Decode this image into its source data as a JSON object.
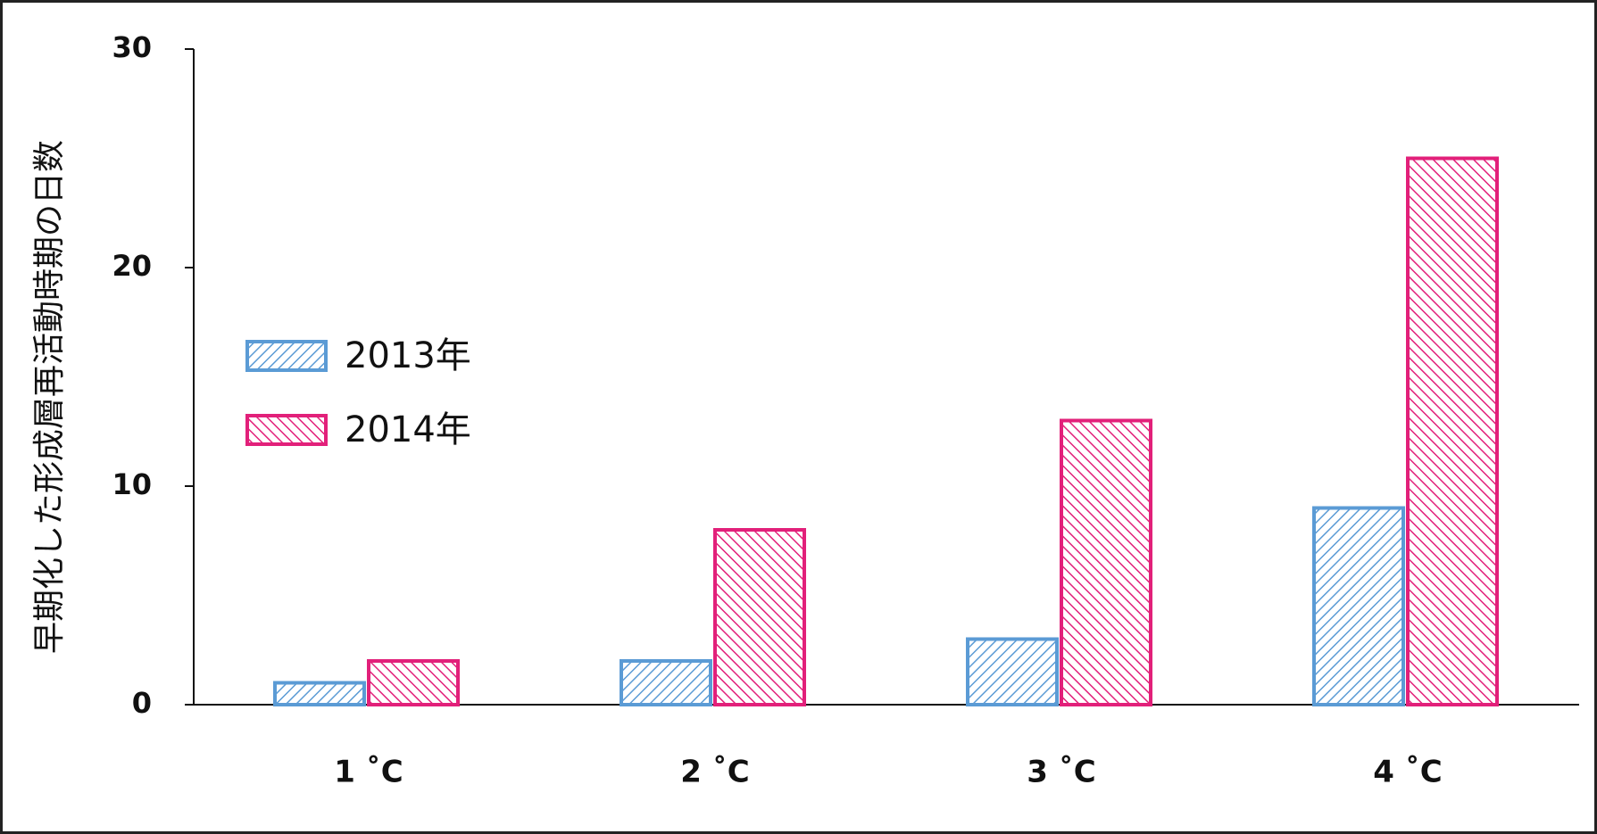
{
  "chart_data": {
    "type": "bar",
    "y_label": "早期化した形成層再活動時期の日数",
    "categories": [
      "1 ˚C",
      "2 ˚C",
      "3 ˚C",
      "4 ˚C"
    ],
    "series": [
      {
        "name": "2013年",
        "color": "#5b9bd5",
        "hatch": "forward",
        "values": [
          1,
          2,
          3,
          9
        ]
      },
      {
        "name": "2014年",
        "color": "#e2207a",
        "hatch": "backward",
        "values": [
          2,
          8,
          13,
          25
        ]
      }
    ],
    "ylim": [
      0,
      30
    ],
    "yticks": [
      0,
      10,
      20,
      30
    ],
    "grid": false
  }
}
